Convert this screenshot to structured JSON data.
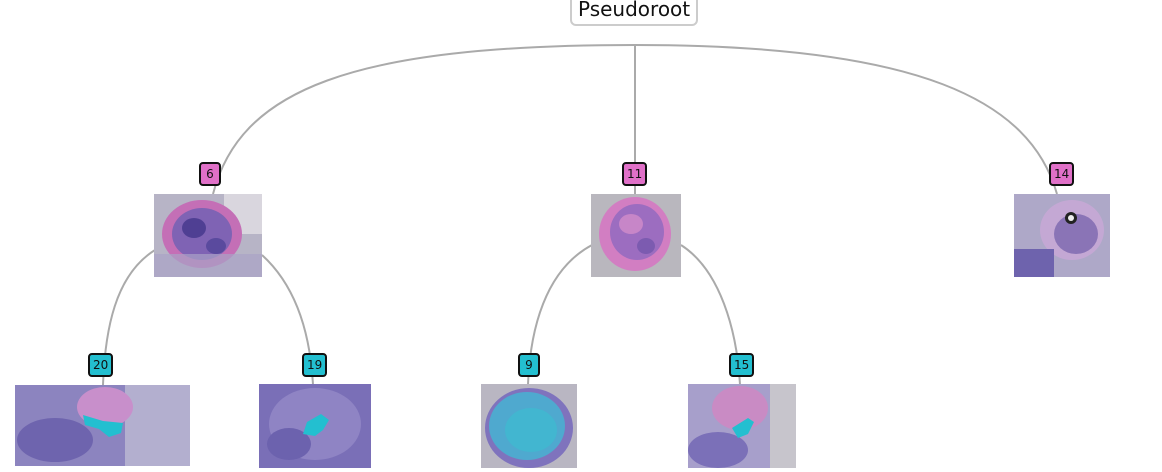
{
  "root": {
    "label": "Pseudoroot"
  },
  "nodes": [
    {
      "id": "node-6",
      "label": "6",
      "color": "#e070c8",
      "image": "pink-tissue-thumbnail"
    },
    {
      "id": "node-11",
      "label": "11",
      "color": "#e070c8",
      "image": "pink-tissue-thumbnail"
    },
    {
      "id": "node-14",
      "label": "14",
      "color": "#e070c8",
      "image": "pink-tissue-thumbnail"
    },
    {
      "id": "node-20",
      "label": "20",
      "color": "#23bfd0",
      "image": "cyan-highlight-thumbnail"
    },
    {
      "id": "node-19",
      "label": "19",
      "color": "#23bfd0",
      "image": "cyan-highlight-thumbnail"
    },
    {
      "id": "node-9",
      "label": "9",
      "color": "#23bfd0",
      "image": "cyan-highlight-thumbnail"
    },
    {
      "id": "node-15",
      "label": "15",
      "color": "#23bfd0",
      "image": "cyan-highlight-thumbnail"
    }
  ],
  "edges": [
    {
      "from": "Pseudoroot",
      "to": "6"
    },
    {
      "from": "Pseudoroot",
      "to": "11"
    },
    {
      "from": "Pseudoroot",
      "to": "14"
    },
    {
      "from": "6",
      "to": "20"
    },
    {
      "from": "6",
      "to": "19"
    },
    {
      "from": "11",
      "to": "9"
    },
    {
      "from": "11",
      "to": "15"
    }
  ],
  "colors": {
    "edge": "#aaaaaa",
    "pink": "#e070c8",
    "cyan": "#23bfd0",
    "tissue": "#6a5fa8"
  }
}
